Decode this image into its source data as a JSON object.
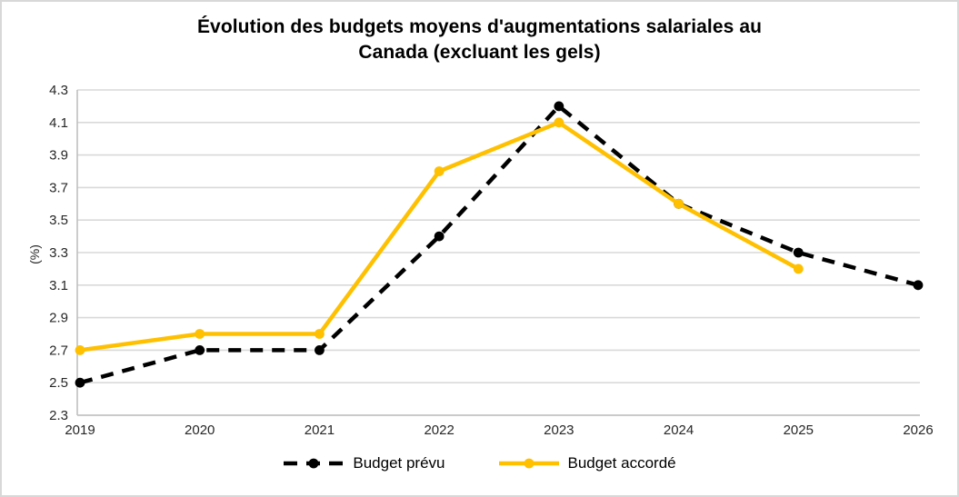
{
  "chart_data": {
    "type": "line",
    "title": "Évolution des budgets moyens d'augmentations salariales au Canada (excluant les gels)",
    "title_lines": [
      "Évolution des budgets moyens d'augmentations salariales au",
      "Canada (excluant les gels)"
    ],
    "ylabel": "(%)",
    "ylim": [
      2.3,
      4.3
    ],
    "ytick_step": 0.2,
    "yticks": [
      "2.3",
      "2.5",
      "2.7",
      "2.9",
      "3.1",
      "3.3",
      "3.5",
      "3.7",
      "3.9",
      "4.1",
      "4.3"
    ],
    "categories": [
      "2019",
      "2020",
      "2021",
      "2022",
      "2023",
      "2024",
      "2025",
      "2026"
    ],
    "series": [
      {
        "name": "Budget prévu",
        "color": "#000000",
        "line_style": "dashed",
        "dash": "14 10",
        "marker": "circle",
        "values": [
          2.5,
          2.7,
          2.7,
          3.4,
          4.2,
          3.6,
          3.3,
          3.1
        ]
      },
      {
        "name": "Budget accordé",
        "color": "#FFC000",
        "line_style": "solid",
        "dash": "",
        "marker": "circle",
        "values": [
          2.7,
          2.8,
          2.8,
          3.8,
          4.1,
          3.6,
          3.2,
          null
        ]
      }
    ],
    "grid": true,
    "legend_position": "bottom",
    "colors": {
      "grid": "#D9D9D9",
      "axis": "#BFBFBF",
      "tick_text": "#262626",
      "background": "#FFFFFF",
      "frame_border": "#D8D8D8"
    }
  }
}
